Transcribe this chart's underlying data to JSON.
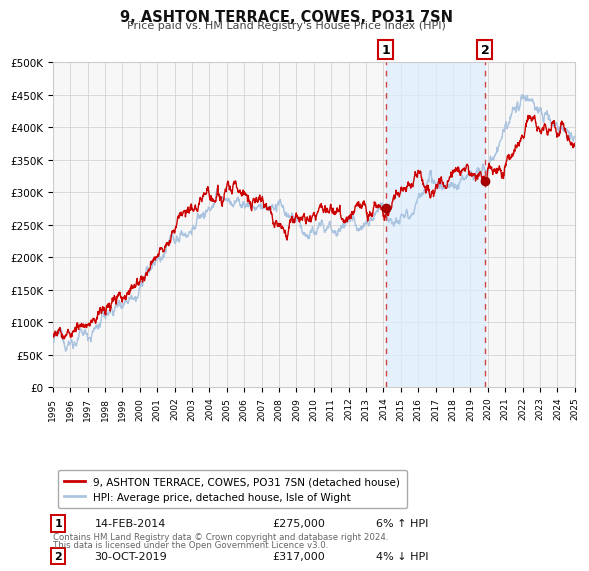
{
  "title": "9, ASHTON TERRACE, COWES, PO31 7SN",
  "subtitle": "Price paid vs. HM Land Registry's House Price Index (HPI)",
  "ylim": [
    0,
    500000
  ],
  "xlim": [
    1995,
    2025
  ],
  "yticks": [
    0,
    50000,
    100000,
    150000,
    200000,
    250000,
    300000,
    350000,
    400000,
    450000,
    500000
  ],
  "ytick_labels": [
    "£0",
    "£50K",
    "£100K",
    "£150K",
    "£200K",
    "£250K",
    "£300K",
    "£350K",
    "£400K",
    "£450K",
    "£500K"
  ],
  "hpi_color": "#aac4e0",
  "hpi_fill_color": "#d8eaf8",
  "price_color": "#cc0000",
  "between_fill_color": "#ddeeff",
  "marker1_date": 2014.12,
  "marker1_price": 275000,
  "marker1_label": "14-FEB-2014",
  "marker1_amount": "£275,000",
  "marker1_pct": "6% ↑ HPI",
  "marker2_date": 2019.83,
  "marker2_price": 317000,
  "marker2_label": "30-OCT-2019",
  "marker2_amount": "£317,000",
  "marker2_pct": "4% ↓ HPI",
  "legend_line1": "9, ASHTON TERRACE, COWES, PO31 7SN (detached house)",
  "legend_line2": "HPI: Average price, detached house, Isle of Wight",
  "footnote1": "Contains HM Land Registry data © Crown copyright and database right 2024.",
  "footnote2": "This data is licensed under the Open Government Licence v3.0.",
  "background_color": "#ffffff"
}
